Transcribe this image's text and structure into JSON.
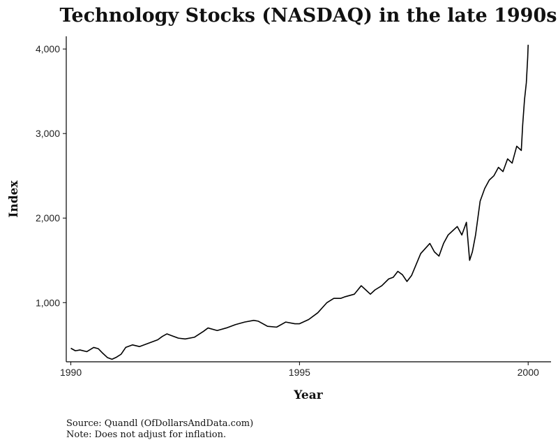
{
  "chart_data": {
    "type": "line",
    "title": "Technology Stocks (NASDAQ) in the late 1990s",
    "xlabel": "Year",
    "ylabel": "Index",
    "xlim": [
      1989.9,
      2000.5
    ],
    "ylim": [
      300,
      4150
    ],
    "x_ticks": [
      1990,
      1995,
      2000
    ],
    "x_tick_labels": [
      "1990",
      "1995",
      "2000"
    ],
    "y_ticks": [
      1000,
      2000,
      3000,
      4000
    ],
    "y_tick_labels": [
      "1,000",
      "2,000",
      "3,000",
      "4,000"
    ],
    "grid": false,
    "legend": "none",
    "line_color": "#000000",
    "series": [
      {
        "x": [
          1990.0,
          1990.1,
          1990.2,
          1990.35,
          1990.5,
          1990.6,
          1990.7,
          1990.8,
          1990.9,
          1991.0,
          1991.1,
          1991.2,
          1991.35,
          1991.5,
          1991.7,
          1991.9,
          1992.0,
          1992.1,
          1992.2,
          1992.35,
          1992.5,
          1992.7,
          1992.9,
          1993.0,
          1993.2,
          1993.4,
          1993.6,
          1993.8,
          1994.0,
          1994.1,
          1994.3,
          1994.5,
          1994.7,
          1994.9,
          1995.0,
          1995.2,
          1995.4,
          1995.6,
          1995.75,
          1995.9,
          1996.0,
          1996.2,
          1996.35,
          1996.45,
          1996.55,
          1996.65,
          1996.8,
          1996.95,
          1997.05,
          1997.15,
          1997.25,
          1997.35,
          1997.45,
          1997.55,
          1997.65,
          1997.75,
          1997.85,
          1997.95,
          1998.05,
          1998.15,
          1998.25,
          1998.35,
          1998.45,
          1998.55,
          1998.65,
          1998.72,
          1998.78,
          1998.85,
          1998.95,
          1999.05,
          1999.15,
          1999.25,
          1999.35,
          1999.45,
          1999.55,
          1999.65,
          1999.75,
          1999.85,
          1999.88,
          1999.92,
          1999.96,
          1999.99,
          2000.0
        ],
        "y": [
          460,
          430,
          440,
          420,
          470,
          455,
          400,
          350,
          330,
          355,
          390,
          470,
          500,
          480,
          520,
          560,
          600,
          630,
          610,
          580,
          570,
          590,
          660,
          700,
          670,
          700,
          740,
          770,
          790,
          780,
          720,
          710,
          770,
          750,
          750,
          800,
          880,
          1000,
          1050,
          1050,
          1070,
          1100,
          1200,
          1150,
          1100,
          1150,
          1200,
          1280,
          1300,
          1370,
          1330,
          1250,
          1320,
          1450,
          1580,
          1640,
          1700,
          1600,
          1550,
          1700,
          1800,
          1850,
          1900,
          1800,
          1950,
          1500,
          1600,
          1800,
          2200,
          2350,
          2450,
          2500,
          2600,
          2550,
          2700,
          2650,
          2850,
          2800,
          3100,
          3400,
          3600,
          3900,
          4050
        ]
      }
    ]
  },
  "caption": {
    "source": "Source:  Quandl (OfDollarsAndData.com)",
    "note": "Note:  Does not adjust for inflation."
  }
}
